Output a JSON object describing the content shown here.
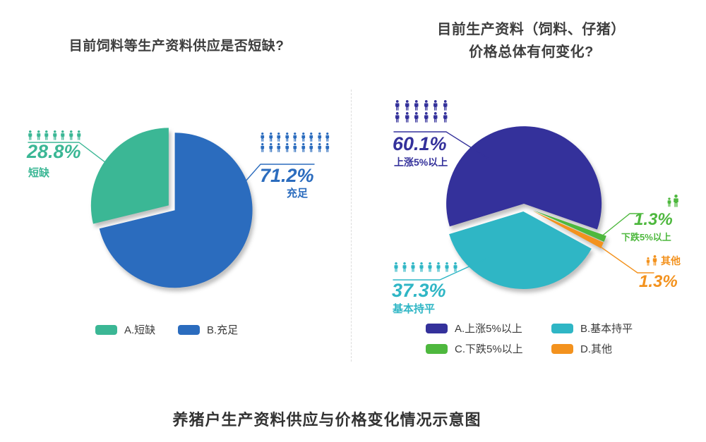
{
  "page_title": "养猪户生产资料供应与价格变化情况示意图",
  "chart_data": [
    {
      "type": "pie",
      "title": "目前饲料等生产资料供应是否短缺?",
      "start_angle_deg_cw_from_top": 256.32,
      "legend_position": "bottom",
      "slices": [
        {
          "label": "A.短缺",
          "name": "短缺",
          "value_pct": 28.8,
          "value_text": "28.8%",
          "color": "#3BB795",
          "icon_rows": [
            7
          ],
          "explode": 9
        },
        {
          "label": "B.充足",
          "name": "充足",
          "value_pct": 71.2,
          "value_text": "71.2%",
          "color": "#2B6CBE",
          "icon_rows": [
            9,
            9
          ],
          "explode": 2
        }
      ],
      "legend": [
        {
          "label": "A.短缺",
          "color": "#3BB795"
        },
        {
          "label": "B.充足",
          "color": "#2B6CBE"
        }
      ]
    },
    {
      "type": "pie",
      "title": "目前生产资料（饲料、仔猪）价格总体有何变化?",
      "title_line1": "目前生产资料（饲料、仔猪）",
      "title_line2": "价格总体有何变化?",
      "start_angle_deg_cw_from_top": 253,
      "legend_position": "bottom",
      "slices": [
        {
          "label": "A.上涨5%以上",
          "name": "上涨5%以上",
          "value_pct": 60.1,
          "value_text": "60.1%",
          "color": "#34319B",
          "icon_rows": [
            6,
            6
          ],
          "explode": 4
        },
        {
          "label": "C.下跌5%以上",
          "name": "下跌5%以上",
          "value_pct": 1.3,
          "value_text": "1.3%",
          "color": "#4EB83E",
          "icon_rows": [
            1
          ],
          "icon_partial": true,
          "explode": 14
        },
        {
          "label": "D.其他",
          "name": "其他",
          "value_pct": 1.3,
          "value_text": "1.3%",
          "color": "#F3921E",
          "icon_rows": [
            1
          ],
          "icon_partial": true,
          "explode": 14
        },
        {
          "label": "B.基本持平",
          "name": "基本持平",
          "value_pct": 37.3,
          "value_text": "37.3%",
          "color": "#2FB6C5",
          "icon_rows": [
            8
          ],
          "explode": 7
        }
      ],
      "legend": [
        {
          "label": "A.上涨5%以上",
          "color": "#34319B"
        },
        {
          "label": "B.基本持平",
          "color": "#2FB6C5"
        },
        {
          "label": "C.下跌5%以上",
          "color": "#4EB83E"
        },
        {
          "label": "D.其他",
          "color": "#F3921E"
        }
      ]
    }
  ]
}
